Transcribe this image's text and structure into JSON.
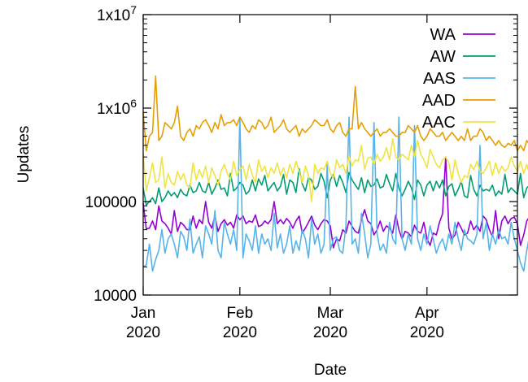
{
  "chart_data": {
    "type": "line",
    "xlabel": "Date",
    "ylabel": "Updates",
    "x_scale": "time",
    "y_scale": "log",
    "xlim": [
      "2020-01-01",
      "2020-04-30"
    ],
    "ylim": [
      10000,
      10000000
    ],
    "grid": false,
    "legend_position": "top-right",
    "x_ticks": [
      {
        "date": "2020-01-01",
        "label_line1": "Jan",
        "label_line2": "2020"
      },
      {
        "date": "2020-02-01",
        "label_line1": "Feb",
        "label_line2": "2020"
      },
      {
        "date": "2020-03-01",
        "label_line1": "Mar",
        "label_line2": "2020"
      },
      {
        "date": "2020-04-01",
        "label_line1": "Apr",
        "label_line2": "2020"
      }
    ],
    "y_ticks": [
      {
        "value": 10000,
        "label": "10000"
      },
      {
        "value": 100000,
        "label": "100000"
      },
      {
        "value": 1000000,
        "label": "1x10",
        "exp": "6"
      },
      {
        "value": 10000000,
        "label": "1x10",
        "exp": "7"
      }
    ],
    "x_start": "2020-01-01",
    "x_step_days": 1,
    "series": [
      {
        "name": "WA",
        "color": "#9400d3",
        "values": [
          96000,
          51000,
          52000,
          62000,
          50000,
          90000,
          62000,
          58000,
          52000,
          45000,
          80000,
          48000,
          60000,
          56000,
          50000,
          50000,
          70000,
          52000,
          64000,
          58000,
          100000,
          60000,
          52000,
          70000,
          48000,
          58000,
          64000,
          56000,
          60000,
          52000,
          72000,
          64000,
          70000,
          58000,
          62000,
          60000,
          72000,
          54000,
          56000,
          62000,
          58000,
          64000,
          100000,
          58000,
          64000,
          58000,
          66000,
          60000,
          52000,
          62000,
          70000,
          46000,
          52000,
          60000,
          70000,
          56000,
          50000,
          58000,
          64000,
          62000,
          55000,
          32000,
          40000,
          38000,
          50000,
          46000,
          62000,
          54000,
          48000,
          46000,
          64000,
          82000,
          62000,
          58000,
          44000,
          50000,
          62000,
          48000,
          55000,
          52000,
          46000,
          72000,
          50000,
          40000,
          48000,
          46000,
          42000,
          56000,
          48000,
          46000,
          60000,
          40000,
          34000,
          46000,
          44000,
          60000,
          74000,
          300000,
          52000,
          40000,
          44000,
          60000,
          52000,
          44000,
          46000,
          62000,
          50000,
          56000,
          48000,
          70000,
          64000,
          50000,
          42000,
          80000,
          40000,
          62000,
          70000,
          58000,
          66000,
          68000,
          58000,
          34000,
          44000,
          62000,
          70000,
          36000,
          64000,
          58000,
          60000,
          50000
        ]
      },
      {
        "name": "AW",
        "color": "#009e73",
        "values": [
          140000,
          92000,
          100000,
          110000,
          95000,
          140000,
          100000,
          110000,
          130000,
          115000,
          125000,
          110000,
          135000,
          120000,
          115000,
          150000,
          125000,
          130000,
          160000,
          130000,
          125000,
          160000,
          120000,
          140000,
          170000,
          135000,
          140000,
          115000,
          200000,
          130000,
          140000,
          160000,
          150000,
          120000,
          130000,
          170000,
          130000,
          175000,
          150000,
          190000,
          130000,
          145000,
          160000,
          130000,
          145000,
          195000,
          120000,
          170000,
          160000,
          125000,
          225000,
          155000,
          130000,
          180000,
          170000,
          135000,
          145000,
          200000,
          165000,
          110000,
          170000,
          195000,
          145000,
          190000,
          160000,
          125000,
          205000,
          170000,
          150000,
          135000,
          180000,
          125000,
          170000,
          145000,
          150000,
          175000,
          140000,
          145000,
          195000,
          155000,
          130000,
          200000,
          140000,
          115000,
          135000,
          165000,
          140000,
          105000,
          170000,
          150000,
          115000,
          150000,
          165000,
          130000,
          165000,
          140000,
          170000,
          115000,
          145000,
          155000,
          115000,
          135000,
          165000,
          115000,
          110000,
          190000,
          135000,
          115000,
          150000,
          130000,
          135000,
          130000,
          150000,
          115000,
          130000,
          120000,
          195000,
          125000,
          140000,
          130000,
          120000,
          200000,
          110000,
          140000,
          150000,
          165000,
          130000,
          125000,
          145000,
          140000
        ]
      },
      {
        "name": "AAS",
        "color": "#56b4e9",
        "values": [
          20000,
          21000,
          35000,
          18000,
          24000,
          30000,
          50000,
          28000,
          40000,
          45000,
          35000,
          25000,
          48000,
          42000,
          30000,
          65000,
          28000,
          35000,
          42000,
          25000,
          55000,
          45000,
          35000,
          80000,
          30000,
          25000,
          60000,
          45000,
          35000,
          50000,
          30000,
          800000,
          25000,
          45000,
          38000,
          30000,
          55000,
          28000,
          45000,
          35000,
          40000,
          30000,
          75000,
          32000,
          45000,
          28000,
          35000,
          55000,
          28000,
          38000,
          30000,
          50000,
          40000,
          25000,
          65000,
          35000,
          45000,
          28000,
          35000,
          250000,
          30000,
          40000,
          42000,
          30000,
          28000,
          55000,
          800000,
          35000,
          40000,
          28000,
          75000,
          45000,
          25000,
          35000,
          700000,
          45000,
          30000,
          35000,
          28000,
          60000,
          40000,
          35000,
          800000,
          40000,
          30000,
          45000,
          35000,
          650000,
          40000,
          30000,
          45000,
          35000,
          55000,
          40000,
          28000,
          35000,
          40000,
          30000,
          45000,
          35000,
          60000,
          40000,
          30000,
          50000,
          40000,
          38000,
          35000,
          45000,
          400000,
          40000,
          60000,
          30000,
          45000,
          35000,
          50000,
          40000,
          42000,
          35000,
          60000,
          40000,
          30000,
          22000,
          18000,
          30000,
          45000,
          35000,
          50000,
          30000,
          35000,
          30000
        ]
      },
      {
        "name": "AAD",
        "color": "#e69f00",
        "values": [
          900000,
          350000,
          500000,
          550000,
          2200000,
          450000,
          500000,
          700000,
          650000,
          600000,
          700000,
          1050000,
          500000,
          450000,
          550000,
          600000,
          500000,
          650000,
          600000,
          700000,
          750000,
          650000,
          550000,
          700000,
          600000,
          850000,
          650000,
          700000,
          700000,
          750000,
          650000,
          800000,
          700000,
          600000,
          550000,
          650000,
          600000,
          750000,
          700000,
          600000,
          650000,
          800000,
          550000,
          600000,
          650000,
          750000,
          600000,
          550000,
          600000,
          650000,
          500000,
          600000,
          550000,
          600000,
          650000,
          750000,
          700000,
          650000,
          650000,
          750000,
          600000,
          550000,
          650000,
          700000,
          550000,
          500000,
          600000,
          600000,
          1700000,
          600000,
          700000,
          600000,
          550000,
          500000,
          550000,
          600000,
          500000,
          550000,
          550000,
          600000,
          550000,
          500000,
          500000,
          550000,
          550000,
          650000,
          600000,
          550000,
          650000,
          500000,
          450000,
          500000,
          600000,
          550000,
          500000,
          500000,
          550000,
          450000,
          500000,
          550000,
          500000,
          450000,
          500000,
          450000,
          600000,
          450000,
          500000,
          500000,
          600000,
          550000,
          450000,
          500000,
          450000,
          400000,
          450000,
          400000,
          380000,
          420000,
          400000,
          450000,
          350000,
          400000,
          350000,
          450000,
          400000,
          500000,
          400000,
          350000,
          450000,
          360000
        ]
      },
      {
        "name": "AAC",
        "color": "#f0e442",
        "values": [
          330000,
          130000,
          180000,
          260000,
          160000,
          170000,
          300000,
          140000,
          200000,
          160000,
          150000,
          210000,
          170000,
          200000,
          150000,
          140000,
          260000,
          170000,
          220000,
          180000,
          240000,
          160000,
          230000,
          190000,
          150000,
          210000,
          250000,
          200000,
          170000,
          270000,
          190000,
          220000,
          240000,
          170000,
          250000,
          190000,
          160000,
          280000,
          210000,
          240000,
          180000,
          230000,
          200000,
          260000,
          190000,
          230000,
          180000,
          250000,
          200000,
          270000,
          210000,
          160000,
          240000,
          190000,
          100000,
          250000,
          200000,
          230000,
          220000,
          270000,
          200000,
          180000,
          280000,
          230000,
          250000,
          200000,
          310000,
          240000,
          280000,
          270000,
          400000,
          220000,
          290000,
          300000,
          250000,
          320000,
          270000,
          300000,
          380000,
          280000,
          470000,
          300000,
          280000,
          320000,
          300000,
          280000,
          400000,
          300000,
          450000,
          320000,
          280000,
          230000,
          360000,
          300000,
          250000,
          230000,
          280000,
          300000,
          260000,
          170000,
          280000,
          200000,
          160000,
          190000,
          180000,
          250000,
          220000,
          270000,
          210000,
          200000,
          230000,
          270000,
          190000,
          260000,
          200000,
          240000,
          210000,
          230000,
          300000,
          240000,
          210000,
          270000,
          200000,
          250000,
          190000,
          160000,
          220000,
          200000,
          280000,
          300000
        ]
      }
    ]
  }
}
